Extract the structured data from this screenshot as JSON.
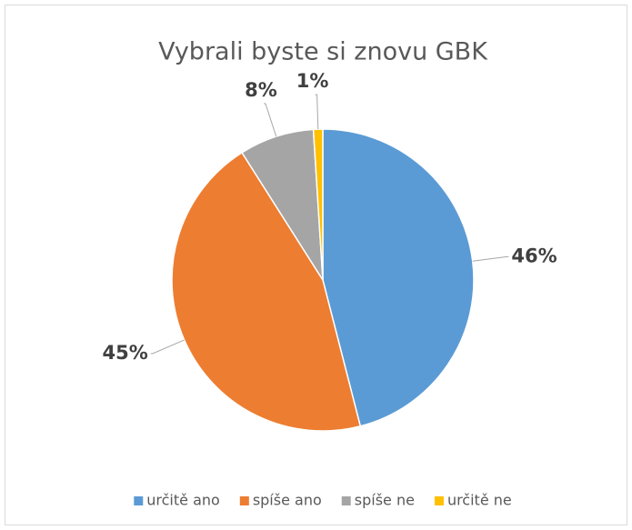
{
  "chart_data": {
    "type": "pie",
    "title": "Vybrali byste si znovu GBK",
    "categories": [
      "určitě ano",
      "spíše ano",
      "spíše ne",
      "určitě ne"
    ],
    "values": [
      46,
      45,
      8,
      1
    ],
    "value_labels": [
      "46%",
      "45%",
      "8%",
      "1%"
    ],
    "colors": [
      "#5b9bd5",
      "#ed7d31",
      "#a5a5a5",
      "#ffc000"
    ],
    "legend": "bottom"
  }
}
